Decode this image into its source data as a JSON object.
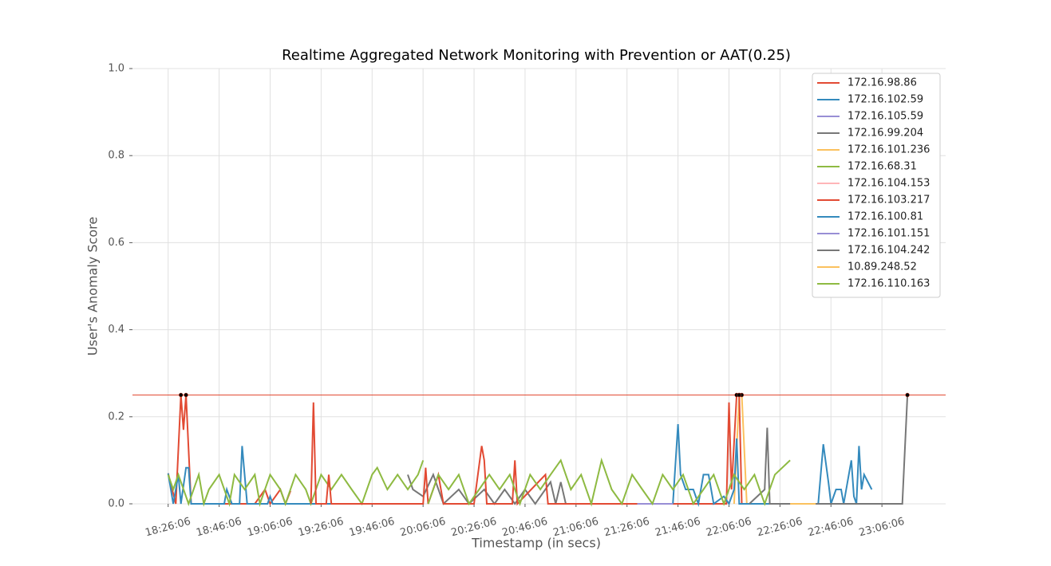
{
  "chart_data": {
    "type": "line",
    "title": "Realtime Aggregated Network Monitoring with Prevention or AAT(0.25)",
    "xlabel": "Timestamp (in secs)",
    "ylabel": "User's Anomaly Score",
    "xlim": [
      "18:12:06",
      "23:31:06"
    ],
    "xticks": [
      "18:26:06",
      "18:46:06",
      "19:06:06",
      "19:26:06",
      "19:46:06",
      "20:06:06",
      "20:26:06",
      "20:46:06",
      "21:06:06",
      "21:26:06",
      "21:46:06",
      "22:06:06",
      "22:26:06",
      "22:46:06",
      "23:06:06"
    ],
    "ylim": [
      0,
      1
    ],
    "yticks": [
      {
        "value": 0,
        "label": "0.0"
      },
      {
        "value": 0.2,
        "label": "0.2"
      },
      {
        "value": 0.4,
        "label": "0.4"
      },
      {
        "value": 0.6,
        "label": "0.6"
      },
      {
        "value": 0.8,
        "label": "0.8"
      },
      {
        "value": 1,
        "label": "1.0"
      }
    ],
    "grid": true,
    "legend": "upper right",
    "threshold": 0.25,
    "threshold_color": "#e24a33",
    "series": [
      {
        "name": "172.16.98.86",
        "color": "#e24a33",
        "x": [
          "18:26:06",
          "18:29:06",
          "18:31:06",
          "18:32:06",
          "18:33:06",
          "18:35:06",
          "19:00:06",
          "19:04:06",
          "19:06:06",
          "19:10:06",
          "19:12:06",
          "19:14:06"
        ],
        "values": [
          0.07,
          0,
          0.25,
          0.17,
          0.25,
          0,
          0,
          0.033,
          0,
          0.033,
          0,
          0.03
        ]
      },
      {
        "name": "172.16.102.59",
        "color": "#348abd",
        "x": [
          "18:26:06",
          "18:28:06",
          "18:30:06",
          "18:31:06",
          "18:33:06",
          "18:34:06",
          "18:35:06",
          "18:48:06",
          "18:49:06",
          "18:51:06",
          "18:54:06",
          "18:55:06",
          "18:57:06",
          "19:05:06",
          "19:06:06",
          "19:07:06",
          "19:40:06"
        ],
        "values": [
          0.07,
          0,
          0.067,
          0,
          0.083,
          0.083,
          0,
          0,
          0.033,
          0,
          0,
          0.133,
          0,
          0,
          0.017,
          0,
          0
        ]
      },
      {
        "name": "172.16.105.59",
        "color": "#988ed5",
        "x": [
          "19:40:06",
          "20:00:06"
        ],
        "values": [
          0,
          0
        ]
      },
      {
        "name": "172.16.99.204",
        "color": "#777777",
        "x": [
          "20:00:06",
          "20:02:06",
          "20:06:06",
          "20:10:06",
          "20:14:06",
          "20:20:06",
          "20:24:06",
          "20:30:06",
          "20:34:06",
          "20:38:06",
          "20:42:06",
          "20:46:06",
          "20:50:06",
          "20:56:06",
          "20:58:06",
          "21:00:06",
          "21:02:06"
        ],
        "values": [
          0.067,
          0.033,
          0.017,
          0.067,
          0,
          0.033,
          0,
          0.033,
          0,
          0.033,
          0,
          0.033,
          0,
          0.05,
          0,
          0.05,
          0
        ]
      },
      {
        "name": "172.16.101.236",
        "color": "#fbc15e",
        "x": [
          "22:08:06",
          "22:10:06",
          "22:11:06",
          "22:13:06"
        ],
        "values": [
          0,
          0.25,
          0.25,
          0
        ]
      },
      {
        "name": "172.16.68.31",
        "color": "#8eba42",
        "x": [
          "18:26:06",
          "18:28:06",
          "18:30:06",
          "18:34:06",
          "18:38:06",
          "18:40:06",
          "18:42:06",
          "18:46:06",
          "18:50:06",
          "18:52:06",
          "18:56:06",
          "19:00:06",
          "19:02:06",
          "19:06:06",
          "19:10:06",
          "19:12:06",
          "19:16:06",
          "19:20:06",
          "19:22:06",
          "19:26:06",
          "19:30:06",
          "19:34:06",
          "19:38:06",
          "19:42:06",
          "19:46:06",
          "19:48:06",
          "19:52:06",
          "19:56:06",
          "20:00:06",
          "20:04:06",
          "20:06:06"
        ],
        "values": [
          0.067,
          0.033,
          0.067,
          0,
          0.067,
          0,
          0.033,
          0.067,
          0,
          0.067,
          0.033,
          0.067,
          0,
          0.067,
          0.033,
          0,
          0.067,
          0.033,
          0,
          0.067,
          0.033,
          0.067,
          0.033,
          0,
          0.067,
          0.083,
          0.033,
          0.067,
          0.033,
          0.067,
          0.1
        ]
      },
      {
        "name": "172.16.104.153",
        "color": "#ffb5b8",
        "x": [
          "21:10:06",
          "21:30:06"
        ],
        "values": [
          0,
          0
        ]
      },
      {
        "name": "172.16.103.217",
        "color": "#e24a33",
        "x": [
          "19:22:06",
          "19:23:06",
          "19:24:06",
          "19:28:06",
          "19:29:06",
          "19:30:06",
          "20:06:06",
          "20:07:06",
          "20:08:06",
          "20:12:06",
          "20:14:06",
          "20:26:06",
          "20:29:06",
          "20:30:06",
          "20:31:06",
          "20:41:06",
          "20:42:06",
          "20:43:06",
          "20:54:06",
          "20:55:06",
          "22:05:06",
          "22:06:06",
          "22:07:06",
          "22:09:06",
          "22:10:06",
          "22:11:06"
        ],
        "values": [
          0,
          0.233,
          0,
          0,
          0.067,
          0,
          0,
          0.083,
          0,
          0.067,
          0,
          0,
          0.133,
          0.1,
          0,
          0,
          0.1,
          0,
          0.067,
          0,
          0,
          0.233,
          0.033,
          0.25,
          0.25,
          0
        ]
      },
      {
        "name": "172.16.100.81",
        "color": "#348abd",
        "x": [
          "21:44:06",
          "21:46:06",
          "21:47:06",
          "21:49:06",
          "21:52:06",
          "21:54:06",
          "21:56:06",
          "21:58:06",
          "22:00:06",
          "22:04:06",
          "22:06:06",
          "22:08:06",
          "22:09:06",
          "22:10:06",
          "22:41:06",
          "22:43:06",
          "22:45:06",
          "22:46:06",
          "22:48:06",
          "22:50:06",
          "22:51:06",
          "22:54:06",
          "22:55:06",
          "22:56:06",
          "22:57:06",
          "22:58:06",
          "22:59:06",
          "23:02:06"
        ],
        "values": [
          0,
          0.183,
          0.067,
          0.033,
          0.033,
          0,
          0.067,
          0.067,
          0,
          0.017,
          0,
          0.033,
          0.15,
          0,
          0,
          0.137,
          0.05,
          0,
          0.033,
          0.033,
          0,
          0.1,
          0.017,
          0,
          0.133,
          0.033,
          0.067,
          0.033
        ]
      },
      {
        "name": "172.16.101.151",
        "color": "#988ed5",
        "x": [
          "21:30:06",
          "21:44:06"
        ],
        "values": [
          0,
          0
        ]
      },
      {
        "name": "172.16.104.242",
        "color": "#777777",
        "x": [
          "22:14:06",
          "22:20:06",
          "22:21:06",
          "22:22:06",
          "23:06:06",
          "23:14:06",
          "23:16:06"
        ],
        "values": [
          0,
          0.033,
          0.175,
          0,
          0,
          0,
          0.25
        ]
      },
      {
        "name": "10.89.248.52",
        "color": "#fbc15e",
        "x": [
          "22:30:06",
          "22:40:06"
        ],
        "values": [
          0,
          0
        ]
      },
      {
        "name": "172.16.110.163",
        "color": "#8eba42",
        "x": [
          "20:08:06",
          "20:12:06",
          "20:16:06",
          "20:20:06",
          "20:24:06",
          "20:28:06",
          "20:32:06",
          "20:36:06",
          "20:40:06",
          "20:44:06",
          "20:48:06",
          "20:52:06",
          "20:56:06",
          "21:00:06",
          "21:04:06",
          "21:08:06",
          "21:12:06",
          "21:16:06",
          "21:20:06",
          "21:24:06",
          "21:28:06",
          "21:32:06",
          "21:36:06",
          "21:40:06",
          "21:44:06",
          "21:48:06",
          "21:52:06",
          "21:56:06",
          "22:00:06",
          "22:04:06",
          "22:08:06",
          "22:12:06",
          "22:16:06",
          "22:20:06",
          "22:24:06",
          "22:30:06"
        ],
        "values": [
          0,
          0.067,
          0.033,
          0.067,
          0,
          0.033,
          0.067,
          0.033,
          0.067,
          0,
          0.067,
          0.033,
          0.067,
          0.1,
          0.033,
          0.067,
          0,
          0.1,
          0.033,
          0,
          0.067,
          0.033,
          0,
          0.067,
          0.033,
          0.067,
          0,
          0.033,
          0.067,
          0,
          0.067,
          0.033,
          0.067,
          0,
          0.067,
          0.1
        ]
      }
    ]
  }
}
